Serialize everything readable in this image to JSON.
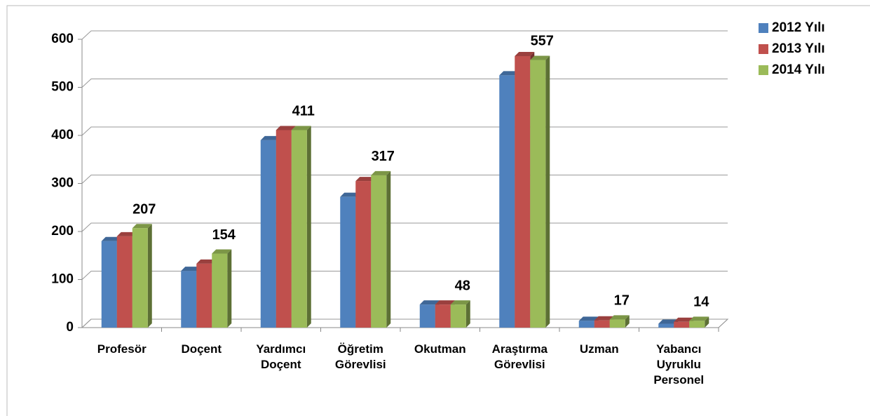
{
  "chart_data": {
    "type": "bar3d",
    "categories": [
      "Profesör",
      "Doçent",
      "Yardımcı Doçent",
      "Öğretim Görevlisi",
      "Okutman",
      "Araştırma Görevlisi",
      "Uzman",
      "Yabancı Uyruklu Personel"
    ],
    "series": [
      {
        "name": "2012 Yılı",
        "color": "#4f81bd",
        "values": [
          180,
          118,
          390,
          272,
          48,
          525,
          14,
          8
        ]
      },
      {
        "name": "2013 Yılı",
        "color": "#c0504d",
        "values": [
          190,
          133,
          411,
          305,
          48,
          565,
          15,
          12
        ]
      },
      {
        "name": "2014 Yılı",
        "color": "#9bbb59",
        "values": [
          207,
          154,
          411,
          317,
          48,
          557,
          17,
          14
        ]
      }
    ],
    "labeled_series": 2,
    "ylim": [
      0,
      600
    ],
    "yticks": [
      0,
      100,
      200,
      300,
      400,
      500,
      600
    ],
    "grid": true,
    "legend": "top-right"
  }
}
